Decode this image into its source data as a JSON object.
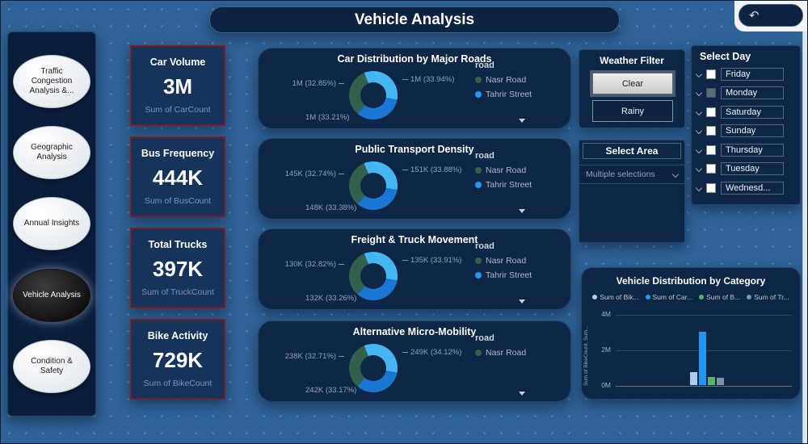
{
  "app": {
    "title": "Vehicle Analysis",
    "undo_icon": "↶"
  },
  "theme": {
    "background": "#2f6296",
    "panel": "#0e2746",
    "kpi_border": "#7a1c24",
    "accent_blue": "#2196f3",
    "accent_green": "#33604d"
  },
  "sidebar": {
    "items": [
      {
        "label": "Traffic Congestion Analysis &...",
        "active": false
      },
      {
        "label": "Geographic Analysis",
        "active": false
      },
      {
        "label": "Annual Insights",
        "active": false
      },
      {
        "label": "Vehicle Analysis",
        "active": true
      },
      {
        "label": "Condition & Safety",
        "active": false
      }
    ]
  },
  "kpis": [
    {
      "title": "Car Volume",
      "value": "3M",
      "caption": "Sum of CarCount"
    },
    {
      "title": "Bus Frequency",
      "value": "444K",
      "caption": "Sum of BusCount"
    },
    {
      "title": "Total Trucks",
      "value": "397K",
      "caption": "Sum of TruckCount"
    },
    {
      "title": "Bike Activity",
      "value": "729K",
      "caption": "Sum of BikeCount"
    }
  ],
  "weather_filter": {
    "title": "Weather Filter",
    "options": [
      {
        "label": "Clear",
        "selected": true
      },
      {
        "label": "Rainy",
        "selected": false
      }
    ]
  },
  "select_area": {
    "title": "Select Area",
    "value": "Multiple selections"
  },
  "select_day": {
    "title": "Select Day",
    "items": [
      {
        "label": "Friday",
        "checked": false
      },
      {
        "label": "Monday",
        "checked": true
      },
      {
        "label": "Saturday",
        "checked": false
      },
      {
        "label": "Sunday",
        "checked": false
      },
      {
        "label": "Thursday",
        "checked": false
      },
      {
        "label": "Tuesday",
        "checked": false
      },
      {
        "label": "Wednesd...",
        "checked": false
      }
    ]
  },
  "chart_data": [
    {
      "type": "pie",
      "title": "Car Distribution by Major Roads",
      "legend_title": "road",
      "start_angle": 220,
      "segments": [
        {
          "label": "1M (32.85%)",
          "pct": 32.85,
          "color": "#33604d"
        },
        {
          "label": "1M (33.94%)",
          "pct": 33.94,
          "color": "#45b6f2"
        },
        {
          "label": "1M (33.21%)",
          "pct": 33.21,
          "color": "#1976d2"
        }
      ],
      "legend": [
        {
          "label": "Nasr Road",
          "color": "#33604d"
        },
        {
          "label": "Tahrir Street",
          "color": "#2196f3"
        }
      ]
    },
    {
      "type": "pie",
      "title": "Public Transport Density",
      "legend_title": "road",
      "start_angle": 220,
      "segments": [
        {
          "label": "145K (32.74%)",
          "pct": 32.74,
          "color": "#33604d"
        },
        {
          "label": "151K (33.88%)",
          "pct": 33.88,
          "color": "#45b6f2"
        },
        {
          "label": "148K (33.38%)",
          "pct": 33.38,
          "color": "#1976d2"
        }
      ],
      "legend": [
        {
          "label": "Nasr Road",
          "color": "#33604d"
        },
        {
          "label": "Tahrir Street",
          "color": "#2196f3"
        }
      ]
    },
    {
      "type": "pie",
      "title": "Freight & Truck Movement",
      "legend_title": "road",
      "start_angle": 220,
      "segments": [
        {
          "label": "130K (32.82%)",
          "pct": 32.82,
          "color": "#33604d"
        },
        {
          "label": "135K (33.91%)",
          "pct": 33.91,
          "color": "#45b6f2"
        },
        {
          "label": "132K (33.26%)",
          "pct": 33.26,
          "color": "#1976d2"
        }
      ],
      "legend": [
        {
          "label": "Nasr Road",
          "color": "#33604d"
        },
        {
          "label": "Tahrir Street",
          "color": "#2196f3"
        }
      ]
    },
    {
      "type": "pie",
      "title": "Alternative Micro-Mobility",
      "legend_title": "road",
      "start_angle": 220,
      "segments": [
        {
          "label": "238K (32.71%)",
          "pct": 32.71,
          "color": "#33604d"
        },
        {
          "label": "249K (34.12%)",
          "pct": 34.12,
          "color": "#45b6f2"
        },
        {
          "label": "242K (33.17%)",
          "pct": 33.17,
          "color": "#1976d2"
        }
      ],
      "legend": [
        {
          "label": "Nasr Road",
          "color": "#33604d"
        }
      ]
    },
    {
      "type": "bar",
      "title": "Vehicle Distribution by Category",
      "ylabel": "Sum of BikeCount, Sum...",
      "yticks": [
        "4M",
        "2M",
        "0M"
      ],
      "ymax": 4000000,
      "legend_position": "top",
      "series": [
        {
          "name": "Sum of Bik...",
          "value": 729000,
          "color": "#a9cdee"
        },
        {
          "name": "Sum of Car...",
          "value": 3000000,
          "color": "#2196f3"
        },
        {
          "name": "Sum of B...",
          "value": 444000,
          "color": "#57b56b"
        },
        {
          "name": "Sum of Tr...",
          "value": 397000,
          "color": "#7f93a8"
        }
      ]
    }
  ]
}
